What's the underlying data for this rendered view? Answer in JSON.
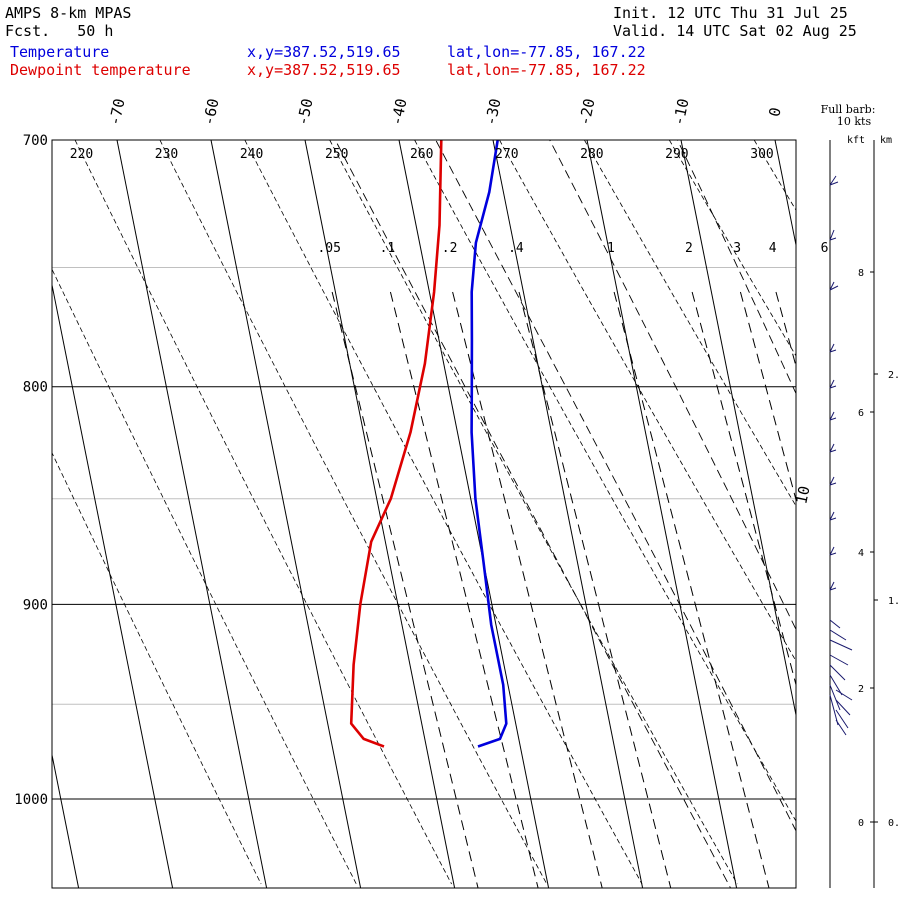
{
  "header": {
    "model": "AMPS 8-km MPAS",
    "forecast": "Fcst.   50 h",
    "init": "Init. 12 UTC Thu 31 Jul 25",
    "valid": "Valid. 14 UTC Sat 02 Aug 25",
    "temp_label": "Temperature",
    "temp_xy": "x,y=387.52,519.65",
    "temp_latlon": "lat,lon=-77.85, 167.22",
    "dew_label": "Dewpoint temperature",
    "dew_xy": "x,y=387.52,519.65",
    "dew_latlon": "lat,lon=-77.85, 167.22"
  },
  "wind_panel": {
    "barb_label_1": "Full barb:",
    "barb_label_2": "10 kts",
    "kft_label": "kft",
    "km_label": "km",
    "kft_ticks": [
      "8",
      "6",
      "4",
      "2",
      "0"
    ],
    "km_ticks": [
      "2.",
      "1.",
      "0."
    ]
  },
  "colors": {
    "temperature": "#0000dd",
    "dewpoint": "#dd0000",
    "isobar": "#000000",
    "grid_minor": "#c0c0c0"
  },
  "chart_data": {
    "type": "line",
    "title": "",
    "subtype": "skew-T log-p sounding",
    "y_axis": {
      "variable": "pressure",
      "unit": "hPa",
      "scale": "log",
      "ylim": [
        1040,
        700
      ],
      "ticks": [
        700,
        800,
        900,
        1000
      ]
    },
    "isotherm_labels": [
      "-70",
      "-60",
      "-50",
      "-40",
      "-30",
      "-20",
      "-10",
      "0",
      "10"
    ],
    "dry_adiabat_labels": [
      "220",
      "230",
      "240",
      "250",
      "260",
      "270",
      "280",
      "290",
      "300"
    ],
    "mixing_ratio_labels": [
      ".05",
      ".1",
      ".2",
      ".4",
      "1",
      "2",
      "3",
      "4",
      "6"
    ],
    "series": [
      {
        "name": "Temperature",
        "color": "#0000dd",
        "points": [
          {
            "p": 700,
            "t": -29.5
          },
          {
            "p": 720,
            "t": -31.5
          },
          {
            "p": 740,
            "t": -34.0
          },
          {
            "p": 760,
            "t": -35.5
          },
          {
            "p": 780,
            "t": -36.5
          },
          {
            "p": 800,
            "t": -37.5
          },
          {
            "p": 820,
            "t": -38.5
          },
          {
            "p": 850,
            "t": -39.5
          },
          {
            "p": 880,
            "t": -40.0
          },
          {
            "p": 910,
            "t": -40.5
          },
          {
            "p": 940,
            "t": -40.5
          },
          {
            "p": 960,
            "t": -41.0
          },
          {
            "p": 968,
            "t": -42.0
          },
          {
            "p": 972,
            "t": -44.5
          }
        ]
      },
      {
        "name": "Dewpoint temperature",
        "color": "#dd0000",
        "points": [
          {
            "p": 700,
            "t": -35.5
          },
          {
            "p": 733,
            "t": -37.5
          },
          {
            "p": 760,
            "t": -39.5
          },
          {
            "p": 790,
            "t": -42.0
          },
          {
            "p": 820,
            "t": -45.0
          },
          {
            "p": 850,
            "t": -48.5
          },
          {
            "p": 870,
            "t": -51.5
          },
          {
            "p": 900,
            "t": -54.0
          },
          {
            "p": 930,
            "t": -56.0
          },
          {
            "p": 960,
            "t": -57.5
          },
          {
            "p": 968,
            "t": -56.5
          },
          {
            "p": 972,
            "t": -54.5
          }
        ]
      }
    ]
  }
}
